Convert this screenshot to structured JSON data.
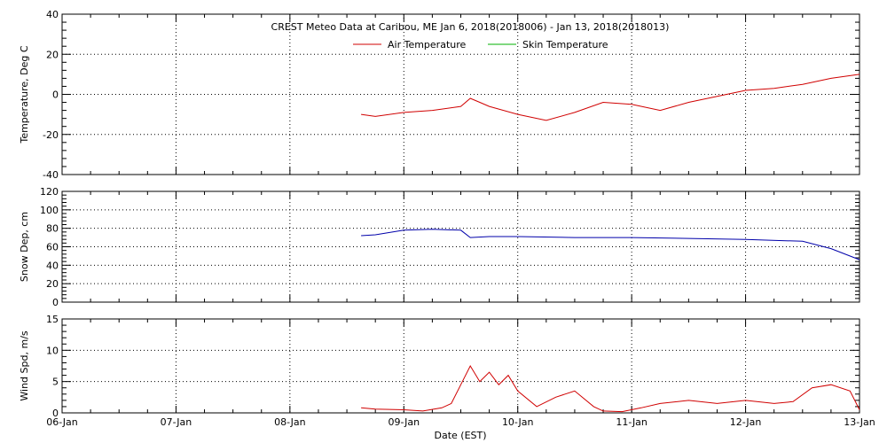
{
  "header": {
    "title": "CREST Meteo Data at Caribou, ME   Jan  6, 2018(2018006) - Jan 13, 2018(2018013)"
  },
  "legend": {
    "placement": "top-center",
    "items": [
      {
        "label": "Air Temperature",
        "color": "#d00000"
      },
      {
        "label": "Skin Temperature",
        "color": "#00b000"
      }
    ]
  },
  "colors": {
    "frame": "#000000",
    "grid": "#000000",
    "air": "#d00000",
    "snow": "#0000aa",
    "wind": "#d00000",
    "skin": "#00b000"
  },
  "chart_data": [
    {
      "type": "line",
      "ylabel": "Temperature, Deg C",
      "ylim": [
        -40,
        40
      ],
      "yticks": [
        -40,
        -20,
        0,
        20,
        40
      ],
      "grid": true,
      "x_range": [
        "06-Jan",
        "13-Jan"
      ],
      "xticks": [
        "06-Jan",
        "07-Jan",
        "08-Jan",
        "09-Jan",
        "10-Jan",
        "11-Jan",
        "12-Jan",
        "13-Jan"
      ],
      "series": [
        {
          "name": "Air Temperature",
          "color": "#d00000",
          "x": [
            "2018-01-08 15:00",
            "2018-01-08 18:00",
            "2018-01-09 00:00",
            "2018-01-09 06:00",
            "2018-01-09 12:00",
            "2018-01-09 14:00",
            "2018-01-09 16:00",
            "2018-01-09 18:00",
            "2018-01-10 00:00",
            "2018-01-10 06:00",
            "2018-01-10 12:00",
            "2018-01-10 18:00",
            "2018-01-11 00:00",
            "2018-01-11 06:00",
            "2018-01-11 12:00",
            "2018-01-11 18:00",
            "2018-01-12 00:00",
            "2018-01-12 06:00",
            "2018-01-12 12:00",
            "2018-01-12 18:00",
            "2018-01-13 00:00"
          ],
          "y": [
            -10,
            -11,
            -9,
            -8,
            -6,
            -2,
            -4,
            -6,
            -10,
            -13,
            -9,
            -4,
            -5,
            -8,
            -4,
            -1,
            2,
            3,
            5,
            8,
            10
          ]
        },
        {
          "name": "Skin Temperature",
          "color": "#00b000",
          "x": [],
          "y": []
        }
      ]
    },
    {
      "type": "line",
      "ylabel": "Snow Dep, cm",
      "ylim": [
        0,
        120
      ],
      "yticks": [
        0,
        20,
        40,
        60,
        80,
        100,
        120
      ],
      "grid": true,
      "x_range": [
        "06-Jan",
        "13-Jan"
      ],
      "xticks": [
        "06-Jan",
        "07-Jan",
        "08-Jan",
        "09-Jan",
        "10-Jan",
        "11-Jan",
        "12-Jan",
        "13-Jan"
      ],
      "series": [
        {
          "color": "#0000aa",
          "x": [
            "2018-01-08 15:00",
            "2018-01-08 18:00",
            "2018-01-09 00:00",
            "2018-01-09 06:00",
            "2018-01-09 12:00",
            "2018-01-09 14:00",
            "2018-01-09 18:00",
            "2018-01-10 00:00",
            "2018-01-10 12:00",
            "2018-01-11 00:00",
            "2018-01-11 12:00",
            "2018-01-12 00:00",
            "2018-01-12 12:00",
            "2018-01-12 18:00",
            "2018-01-13 00:00"
          ],
          "y": [
            72,
            73,
            78,
            79,
            78,
            70,
            71,
            71,
            70,
            70,
            69,
            68,
            66,
            58,
            46
          ]
        }
      ]
    },
    {
      "type": "line",
      "ylabel": "Wind Spd, m/s",
      "ylim": [
        0,
        15
      ],
      "yticks": [
        0,
        5,
        10,
        15
      ],
      "grid": true,
      "xlabel": "Date (EST)",
      "x_range": [
        "06-Jan",
        "13-Jan"
      ],
      "xticks": [
        "06-Jan",
        "07-Jan",
        "08-Jan",
        "09-Jan",
        "10-Jan",
        "11-Jan",
        "12-Jan",
        "13-Jan"
      ],
      "series": [
        {
          "color": "#d00000",
          "x": [
            "2018-01-08 15:00",
            "2018-01-08 18:00",
            "2018-01-09 00:00",
            "2018-01-09 04:00",
            "2018-01-09 08:00",
            "2018-01-09 10:00",
            "2018-01-09 12:00",
            "2018-01-09 14:00",
            "2018-01-09 16:00",
            "2018-01-09 18:00",
            "2018-01-09 20:00",
            "2018-01-09 22:00",
            "2018-01-10 00:00",
            "2018-01-10 04:00",
            "2018-01-10 08:00",
            "2018-01-10 12:00",
            "2018-01-10 16:00",
            "2018-01-10 18:00",
            "2018-01-10 22:00",
            "2018-01-11 02:00",
            "2018-01-11 06:00",
            "2018-01-11 12:00",
            "2018-01-11 18:00",
            "2018-01-12 00:00",
            "2018-01-12 06:00",
            "2018-01-12 10:00",
            "2018-01-12 14:00",
            "2018-01-12 18:00",
            "2018-01-12 22:00",
            "2018-01-13 00:00"
          ],
          "y": [
            0.8,
            0.6,
            0.5,
            0.3,
            0.8,
            1.5,
            4.5,
            7.5,
            5.0,
            6.5,
            4.5,
            6.0,
            3.5,
            1.0,
            2.5,
            3.5,
            1.0,
            0.3,
            0.2,
            0.8,
            1.5,
            2.0,
            1.5,
            2.0,
            1.5,
            1.8,
            4.0,
            4.5,
            3.5,
            0.5
          ]
        }
      ]
    }
  ]
}
